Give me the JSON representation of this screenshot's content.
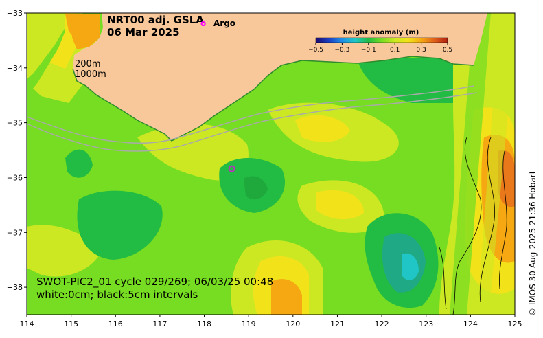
{
  "title": {
    "line1": "NRT00 adj. GSLA",
    "line2": "06 Mar 2025"
  },
  "argo_legend": {
    "symbol": "o",
    "label": "Argo",
    "color": "#ff00ff"
  },
  "colorbar": {
    "title": "height anomaly (m)",
    "ticks": [
      "−0.5",
      "−0.3",
      "−0.1",
      "0.1",
      "0.3",
      "0.5"
    ],
    "range": [
      -0.5,
      0.5
    ],
    "colors": [
      "#1a0a6e",
      "#1b3fc2",
      "#1f8fe6",
      "#20c6c6",
      "#22bb44",
      "#77dd22",
      "#cce822",
      "#f2e21a",
      "#f5a812",
      "#e0601a",
      "#b02010"
    ]
  },
  "isobaths": {
    "shallow": "200m",
    "deep": "1000m"
  },
  "swot_note": {
    "line1": "SWOT-PIC2_01 cycle 029/269; 06/03/25 00:48",
    "line2": "white:0cm; black:5cm intervals"
  },
  "credit": "© IMOS 30-Aug-2025 21:36 Hobart",
  "colors": {
    "land": "#f8c89a",
    "ocean_base": "#77dd22",
    "ocean_high": "#cce822",
    "ocean_low": "#22bb44",
    "isobath": "#aaaaaa"
  },
  "axes": {
    "x_ticks": [
      "114",
      "115",
      "116",
      "117",
      "118",
      "119",
      "120",
      "121",
      "122",
      "123",
      "124",
      "125"
    ],
    "y_ticks": [
      "−33",
      "−34",
      "−35",
      "−36",
      "−37",
      "−38"
    ],
    "lon_range": [
      114,
      125
    ],
    "lat_range": [
      -38.5,
      -33
    ]
  },
  "argo_floats": [
    {
      "lon": 118.62,
      "lat": -35.84
    }
  ]
}
